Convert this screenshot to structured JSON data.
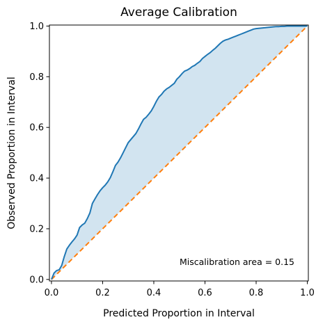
{
  "chart_data": {
    "type": "line",
    "title": "Average Calibration",
    "xlabel": "Predicted Proportion in Interval",
    "ylabel": "Observed Proportion in Interval",
    "xlim": [
      0.0,
      1.0
    ],
    "ylim": [
      0.0,
      1.0
    ],
    "xticks": [
      0.0,
      0.2,
      0.4,
      0.6,
      0.8,
      1.0
    ],
    "yticks": [
      0.0,
      0.2,
      0.4,
      0.6,
      0.8,
      1.0
    ],
    "xtick_labels": [
      "0.0",
      "0.2",
      "0.4",
      "0.6",
      "0.8",
      "1.0"
    ],
    "ytick_labels": [
      "0.0",
      "0.2",
      "0.4",
      "0.6",
      "0.8",
      "1.0"
    ],
    "grid": false,
    "legend": "none",
    "annotation": "Miscalibration area = 0.15",
    "series": [
      {
        "role": "observed",
        "color": "#1f77b4",
        "style": "solid",
        "x": [
          0.0,
          0.01,
          0.02,
          0.03,
          0.04,
          0.05,
          0.06,
          0.07,
          0.08,
          0.09,
          0.1,
          0.11,
          0.12,
          0.13,
          0.14,
          0.15,
          0.16,
          0.17,
          0.18,
          0.19,
          0.2,
          0.21,
          0.22,
          0.23,
          0.24,
          0.25,
          0.26,
          0.27,
          0.28,
          0.29,
          0.3,
          0.31,
          0.32,
          0.33,
          0.34,
          0.35,
          0.36,
          0.37,
          0.38,
          0.39,
          0.4,
          0.41,
          0.42,
          0.43,
          0.44,
          0.45,
          0.46,
          0.47,
          0.48,
          0.49,
          0.5,
          0.51,
          0.52,
          0.53,
          0.54,
          0.55,
          0.56,
          0.57,
          0.58,
          0.59,
          0.6,
          0.61,
          0.62,
          0.63,
          0.64,
          0.65,
          0.66,
          0.67,
          0.68,
          0.69,
          0.7,
          0.71,
          0.72,
          0.73,
          0.74,
          0.75,
          0.76,
          0.77,
          0.78,
          0.79,
          0.8,
          0.81,
          0.82,
          0.83,
          0.84,
          0.85,
          0.86,
          0.87,
          0.88,
          0.89,
          0.9,
          0.91,
          0.92,
          0.93,
          0.94,
          0.95,
          0.96,
          0.97,
          0.98,
          0.99,
          1.0
        ],
        "y": [
          0.0,
          0.025,
          0.035,
          0.038,
          0.055,
          0.09,
          0.12,
          0.135,
          0.148,
          0.16,
          0.175,
          0.205,
          0.215,
          0.222,
          0.24,
          0.262,
          0.3,
          0.318,
          0.335,
          0.35,
          0.362,
          0.372,
          0.385,
          0.402,
          0.425,
          0.45,
          0.463,
          0.48,
          0.5,
          0.52,
          0.54,
          0.552,
          0.564,
          0.576,
          0.594,
          0.614,
          0.632,
          0.64,
          0.652,
          0.665,
          0.683,
          0.703,
          0.72,
          0.73,
          0.743,
          0.752,
          0.758,
          0.766,
          0.774,
          0.79,
          0.8,
          0.812,
          0.822,
          0.826,
          0.832,
          0.84,
          0.845,
          0.853,
          0.86,
          0.872,
          0.88,
          0.888,
          0.895,
          0.904,
          0.912,
          0.922,
          0.932,
          0.94,
          0.945,
          0.948,
          0.952,
          0.956,
          0.96,
          0.964,
          0.968,
          0.972,
          0.976,
          0.98,
          0.984,
          0.988,
          0.99,
          0.991,
          0.992,
          0.993,
          0.994,
          0.995,
          0.996,
          0.997,
          0.998,
          0.998,
          0.999,
          0.999,
          1.0,
          1.0,
          1.0,
          1.0,
          1.0,
          1.0,
          1.0,
          1.0,
          1.0
        ]
      },
      {
        "role": "ideal",
        "color": "#ff7f0e",
        "style": "dashed",
        "x": [
          0.0,
          1.0
        ],
        "y": [
          0.0,
          1.0
        ]
      }
    ],
    "fill_color": "#1f77b4"
  }
}
